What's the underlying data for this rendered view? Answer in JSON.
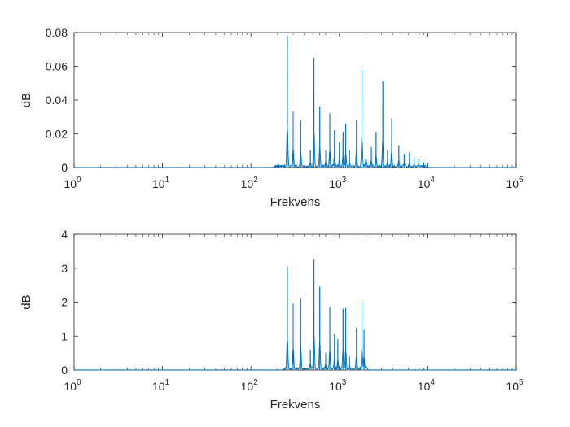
{
  "chart_data": [
    {
      "type": "line",
      "xscale": "log",
      "xlim": [
        1,
        100000
      ],
      "ylim": [
        0,
        0.08
      ],
      "xlabel": "Frekvens",
      "ylabel": "dB",
      "xtick_bases": [
        "10",
        "10",
        "10",
        "10",
        "10",
        "10"
      ],
      "xtick_exponents": [
        "0",
        "1",
        "2",
        "3",
        "4",
        "5"
      ],
      "ytick_labels": [
        "0",
        "0.02",
        "0.04",
        "0.06",
        "0.08"
      ],
      "yticks": [
        0,
        0.02,
        0.04,
        0.06,
        0.08
      ],
      "line_color": "#0072BD",
      "band": [
        180,
        10000
      ],
      "peaks": [
        {
          "x": 258,
          "y": 0.078
        },
        {
          "x": 300,
          "y": 0.033
        },
        {
          "x": 365,
          "y": 0.028
        },
        {
          "x": 470,
          "y": 0.01
        },
        {
          "x": 516,
          "y": 0.065
        },
        {
          "x": 600,
          "y": 0.036
        },
        {
          "x": 700,
          "y": 0.01
        },
        {
          "x": 780,
          "y": 0.032
        },
        {
          "x": 880,
          "y": 0.022
        },
        {
          "x": 1000,
          "y": 0.015
        },
        {
          "x": 1100,
          "y": 0.021
        },
        {
          "x": 1180,
          "y": 0.026
        },
        {
          "x": 1300,
          "y": 0.01
        },
        {
          "x": 1560,
          "y": 0.028
        },
        {
          "x": 1800,
          "y": 0.058
        },
        {
          "x": 2000,
          "y": 0.016
        },
        {
          "x": 2300,
          "y": 0.012
        },
        {
          "x": 2600,
          "y": 0.021
        },
        {
          "x": 3100,
          "y": 0.051
        },
        {
          "x": 3500,
          "y": 0.01
        },
        {
          "x": 3900,
          "y": 0.029
        },
        {
          "x": 4700,
          "y": 0.013
        },
        {
          "x": 5400,
          "y": 0.008
        },
        {
          "x": 6200,
          "y": 0.009
        },
        {
          "x": 7000,
          "y": 0.006
        },
        {
          "x": 7900,
          "y": 0.005
        },
        {
          "x": 9000,
          "y": 0.003
        }
      ]
    },
    {
      "type": "line",
      "xscale": "log",
      "xlim": [
        1,
        100000
      ],
      "ylim": [
        0,
        4
      ],
      "xlabel": "Frekvens",
      "ylabel": "dB",
      "xtick_bases": [
        "10",
        "10",
        "10",
        "10",
        "10",
        "10"
      ],
      "xtick_exponents": [
        "0",
        "1",
        "2",
        "3",
        "4",
        "5"
      ],
      "ytick_labels": [
        "0",
        "1",
        "2",
        "3",
        "4"
      ],
      "yticks": [
        0,
        1,
        2,
        3,
        4
      ],
      "line_color": "#0072BD",
      "band": [
        230,
        2100
      ],
      "peaks": [
        {
          "x": 258,
          "y": 3.05
        },
        {
          "x": 300,
          "y": 1.95
        },
        {
          "x": 365,
          "y": 2.1
        },
        {
          "x": 470,
          "y": 0.6
        },
        {
          "x": 516,
          "y": 3.25
        },
        {
          "x": 600,
          "y": 2.45
        },
        {
          "x": 700,
          "y": 0.5
        },
        {
          "x": 780,
          "y": 1.85
        },
        {
          "x": 880,
          "y": 1.05
        },
        {
          "x": 960,
          "y": 0.9
        },
        {
          "x": 1100,
          "y": 1.8
        },
        {
          "x": 1180,
          "y": 1.82
        },
        {
          "x": 1300,
          "y": 0.4
        },
        {
          "x": 1560,
          "y": 1.25
        },
        {
          "x": 1800,
          "y": 2.0
        },
        {
          "x": 1900,
          "y": 1.18
        },
        {
          "x": 2000,
          "y": 0.3
        }
      ]
    }
  ]
}
